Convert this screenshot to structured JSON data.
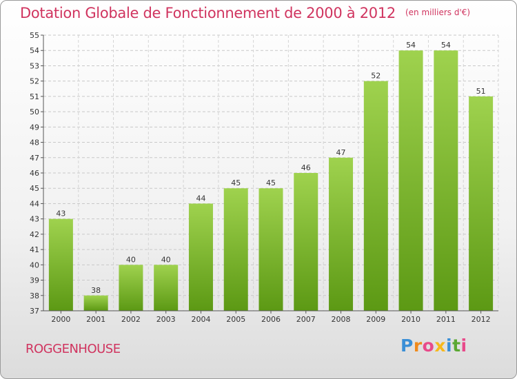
{
  "header": {
    "title": "Dotation Globale de Fonctionnement de 2000 à 2012",
    "unit": "(en milliers d'€)"
  },
  "footer": {
    "place": "ROGGENHOUSE",
    "logo": "Proxiti"
  },
  "colors": {
    "accent": "#d0345f",
    "bar_top": "#9fd24e",
    "bar_bottom": "#5c9914",
    "logo_letters": [
      "#3a8fd6",
      "#f08a1c",
      "#e84a8a",
      "#f7b81c",
      "#3a8fd6",
      "#5aa832",
      "#e84a8a"
    ]
  },
  "chart_data": {
    "type": "bar",
    "categories": [
      "2000",
      "2001",
      "2002",
      "2003",
      "2004",
      "2005",
      "2006",
      "2007",
      "2008",
      "2009",
      "2010",
      "2011",
      "2012"
    ],
    "values": [
      43,
      38,
      40,
      40,
      44,
      45,
      45,
      46,
      47,
      52,
      54,
      54,
      51
    ],
    "data_labels": [
      "43",
      "38",
      "40",
      "40",
      "44",
      "45",
      "45",
      "46",
      "47",
      "52",
      "54",
      "54",
      "51"
    ],
    "title": "Dotation Globale de Fonctionnement de 2000 à 2012",
    "xlabel": "",
    "ylabel": "",
    "ylim": [
      37,
      55
    ],
    "yticks": [
      37,
      38,
      39,
      40,
      41,
      42,
      43,
      44,
      45,
      46,
      47,
      48,
      49,
      50,
      51,
      52,
      53,
      54,
      55
    ],
    "grid": "horizontal dashed",
    "legend": "none"
  }
}
